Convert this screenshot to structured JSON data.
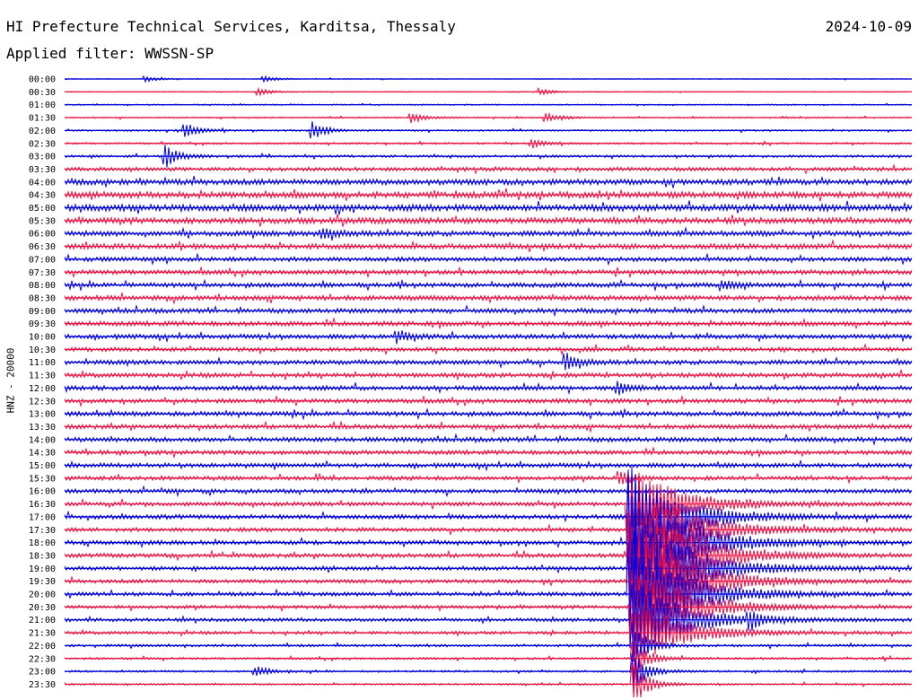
{
  "header": {
    "title": "HI Prefecture Technical Services, Karditsa, Thessaly",
    "date": "2024-10-09",
    "filter": "Applied filter: WWSSN-SP",
    "channel_label": "HNZ - 20000"
  },
  "chart_data": {
    "type": "line",
    "ylabel": "HNZ - 20000",
    "row_labels": [
      "00:00",
      "00:30",
      "01:00",
      "01:30",
      "02:00",
      "02:30",
      "03:00",
      "03:30",
      "04:00",
      "04:30",
      "05:00",
      "05:30",
      "06:00",
      "06:30",
      "07:00",
      "07:30",
      "08:00",
      "08:30",
      "09:00",
      "09:30",
      "10:00",
      "10:30",
      "11:00",
      "11:30",
      "12:00",
      "12:30",
      "13:00",
      "13:30",
      "14:00",
      "14:30",
      "15:00",
      "15:30",
      "16:00",
      "16:30",
      "17:00",
      "17:30",
      "18:00",
      "18:30",
      "19:00",
      "19:30",
      "20:00",
      "20:30",
      "21:00",
      "21:30",
      "22:00",
      "22:30",
      "23:00",
      "23:30"
    ],
    "row_minutes": 30,
    "colors": [
      "#0000dd",
      "#ee1144"
    ],
    "noise_level": [
      0.5,
      0.5,
      0.7,
      0.9,
      1.0,
      1.1,
      1.4,
      2.2,
      3.2,
      3.6,
      3.8,
      3.4,
      3.0,
      3.0,
      2.6,
      2.6,
      2.6,
      2.8,
      2.6,
      2.7,
      2.6,
      2.4,
      2.6,
      2.6,
      2.6,
      2.5,
      2.6,
      2.6,
      2.6,
      2.5,
      2.5,
      2.4,
      2.4,
      2.4,
      2.5,
      2.4,
      2.4,
      2.4,
      2.3,
      2.2,
      2.2,
      2.0,
      2.0,
      1.8,
      1.5,
      1.3,
      1.2,
      1.1
    ],
    "events": [
      {
        "row": 0,
        "minute": 2.9,
        "amplitude": 3
      },
      {
        "row": 0,
        "minute": 7.1,
        "amplitude": 3
      },
      {
        "row": 1,
        "minute": 6.9,
        "amplitude": 4
      },
      {
        "row": 1,
        "minute": 16.9,
        "amplitude": 3
      },
      {
        "row": 3,
        "minute": 12.3,
        "amplitude": 6
      },
      {
        "row": 3,
        "minute": 17.1,
        "amplitude": 5
      },
      {
        "row": 4,
        "minute": 4.3,
        "amplitude": 8
      },
      {
        "row": 4,
        "minute": 8.8,
        "amplitude": 10
      },
      {
        "row": 5,
        "minute": 16.6,
        "amplitude": 5
      },
      {
        "row": 6,
        "minute": 3.6,
        "amplitude": 12
      },
      {
        "row": 12,
        "minute": 9.2,
        "amplitude": 6
      },
      {
        "row": 16,
        "minute": 23.3,
        "amplitude": 6
      },
      {
        "row": 20,
        "minute": 11.8,
        "amplitude": 6
      },
      {
        "row": 22,
        "minute": 17.8,
        "amplitude": 9
      },
      {
        "row": 24,
        "minute": 19.6,
        "amplitude": 8
      },
      {
        "row": 31,
        "minute": 19.7,
        "amplitude": 7
      },
      {
        "row": 33,
        "minute": 20.0,
        "amplitude": 42
      },
      {
        "row": 34,
        "minute": 20.05,
        "amplitude": 60
      },
      {
        "row": 35,
        "minute": 20.05,
        "amplitude": 70
      },
      {
        "row": 36,
        "minute": 20.1,
        "amplitude": 80
      },
      {
        "row": 37,
        "minute": 20.1,
        "amplitude": 85
      },
      {
        "row": 38,
        "minute": 20.1,
        "amplitude": 85
      },
      {
        "row": 39,
        "minute": 20.1,
        "amplitude": 80
      },
      {
        "row": 40,
        "minute": 20.1,
        "amplitude": 70
      },
      {
        "row": 41,
        "minute": 20.15,
        "amplitude": 55
      },
      {
        "row": 42,
        "minute": 20.2,
        "amplitude": 45
      },
      {
        "row": 42,
        "minute": 24.3,
        "amplitude": 9
      },
      {
        "row": 43,
        "minute": 20.2,
        "amplitude": 35
      },
      {
        "row": 44,
        "minute": 20.2,
        "amplitude": 28
      },
      {
        "row": 45,
        "minute": 20.2,
        "amplitude": 24
      },
      {
        "row": 46,
        "minute": 20.2,
        "amplitude": 22
      },
      {
        "row": 46,
        "minute": 6.8,
        "amplitude": 6
      },
      {
        "row": 47,
        "minute": 20.2,
        "amplitude": 24
      }
    ]
  }
}
